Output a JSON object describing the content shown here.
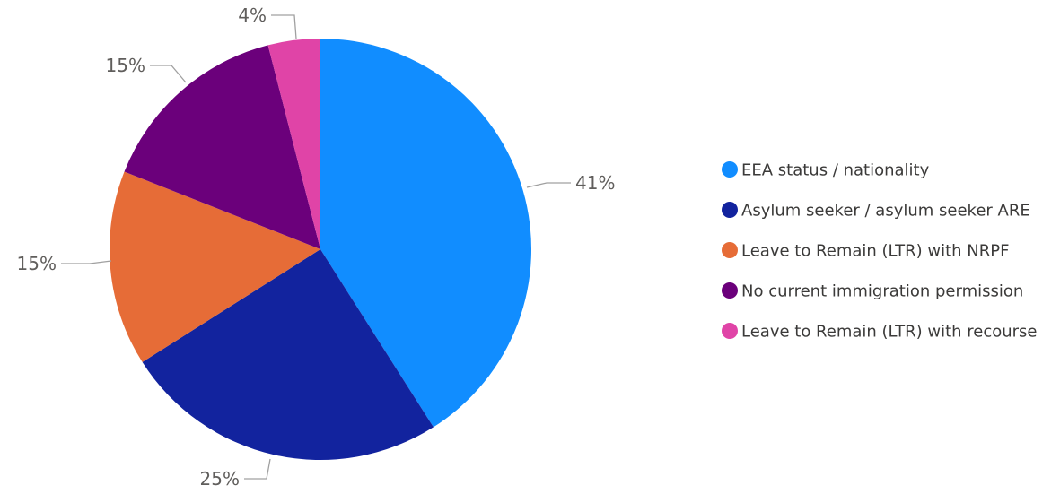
{
  "chart_data": {
    "type": "pie",
    "title": "",
    "legend_position": "right",
    "slices": [
      {
        "label": "EEA status / nationality",
        "value": 41,
        "value_label": "41%",
        "color": "#118DFF"
      },
      {
        "label": "Asylum seeker / asylum seeker ARE",
        "value": 25,
        "value_label": "25%",
        "color": "#12239E"
      },
      {
        "label": "Leave to Remain (LTR) with NRPF",
        "value": 15,
        "value_label": "15%",
        "color": "#E66C37"
      },
      {
        "label": "No current immigration permission",
        "value": 15,
        "value_label": "15%",
        "color": "#6B007B"
      },
      {
        "label": "Leave to Remain (LTR) with recourse",
        "value": 4,
        "value_label": "4%",
        "color": "#E044A7"
      }
    ]
  }
}
